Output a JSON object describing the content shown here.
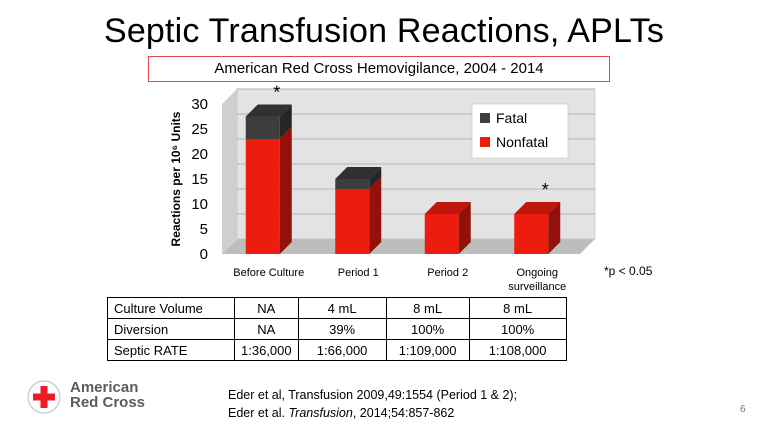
{
  "title": "Septic Transfusion Reactions, APLTs",
  "subtitle": "American Red Cross Hemovigilance, 2004 - 2014",
  "p_note": "*p < 0.05",
  "chart_data": {
    "type": "bar",
    "stacked": true,
    "style": "3d",
    "categories": [
      "Before Culture",
      "Period 1",
      "Period 2",
      "Ongoing surveillance"
    ],
    "series": [
      {
        "name": "Nonfatal",
        "color": "#ee1c0e",
        "values": [
          23,
          13,
          8,
          8
        ]
      },
      {
        "name": "Fatal",
        "color": "#3d3d3d",
        "values": [
          4.5,
          2,
          0,
          0
        ]
      }
    ],
    "ylabel": "Reactions per 10⁶ Units",
    "ylim": [
      0,
      30
    ],
    "yticks": [
      "0",
      "5",
      "10",
      "15",
      "20",
      "25",
      "30"
    ],
    "legend": "top-right",
    "annotations": [
      "*",
      "",
      "",
      "*"
    ]
  },
  "table": {
    "rows": [
      {
        "label": "Culture Volume",
        "values": [
          "NA",
          "4 mL",
          "8 mL",
          "8 mL"
        ]
      },
      {
        "label": "Diversion",
        "values": [
          "NA",
          "39%",
          "100%",
          "100%"
        ]
      },
      {
        "label": "Septic RATE",
        "values": [
          "1:36,000",
          "1:66,000",
          "1:109,000",
          "1:108,000"
        ]
      }
    ]
  },
  "logo": {
    "line1": "American",
    "line2": "Red Cross"
  },
  "citations": {
    "line1": "Eder et al, Transfusion 2009,49:1554 (Period 1 & 2);",
    "line2_a": "Eder et al. ",
    "line2_b": "Transfusion",
    "line2_c": ", 2014;54:857-862"
  },
  "slide_number": "6"
}
